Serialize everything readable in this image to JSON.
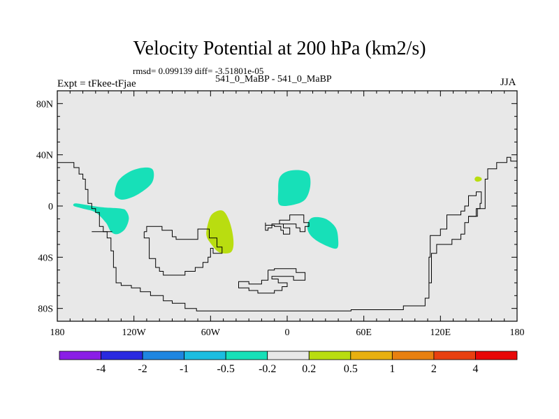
{
  "header": {
    "title": "Velocity Potential at 200 hPa (km2/s)",
    "stats": "rmsd= 0.099139 diff= -3.51801e-05",
    "left_label": "Expt = tFkee-tFjae",
    "center_label": "541_0_MaBP - 541_0_MaBP",
    "right_label": "JJA"
  },
  "chart_data": {
    "type": "heatmap",
    "title": "Velocity Potential at 200 hPa (km2/s)",
    "subtitle": "rmsd= 0.099139 diff= -3.51801e-05",
    "xlabel": "",
    "ylabel": "",
    "xlim": [
      -180,
      180
    ],
    "ylim": [
      -90,
      90
    ],
    "x_ticks": [
      {
        "value": -180,
        "label": "180"
      },
      {
        "value": -120,
        "label": "120W"
      },
      {
        "value": -60,
        "label": "60W"
      },
      {
        "value": 0,
        "label": "0"
      },
      {
        "value": 60,
        "label": "60E"
      },
      {
        "value": 120,
        "label": "120E"
      },
      {
        "value": 180,
        "label": "180"
      }
    ],
    "y_ticks": [
      {
        "value": 80,
        "label": "80N"
      },
      {
        "value": 40,
        "label": "40N"
      },
      {
        "value": 0,
        "label": "0"
      },
      {
        "value": -40,
        "label": "40S"
      },
      {
        "value": -80,
        "label": "80S"
      }
    ],
    "background_color": "#e8e8e8",
    "colorbar": {
      "levels": [
        "-4",
        "-2",
        "-1",
        "-0.5",
        "-0.2",
        "0.2",
        "0.5",
        "1",
        "2",
        "4"
      ],
      "colors": [
        "#8a1ee6",
        "#2a2ae0",
        "#1f86e0",
        "#1cbde0",
        "#17e0b8",
        "#e8e8e8",
        "#b9dd10",
        "#e8b010",
        "#e88010",
        "#e84010",
        "#e80808"
      ]
    },
    "regions": [
      {
        "lon": -123,
        "lat": 18,
        "value_range": "-0.5 to -0.2",
        "color": "#17e0b8",
        "outline": [
          [
            -135,
            11
          ],
          [
            -132,
            20
          ],
          [
            -123,
            27
          ],
          [
            -112,
            30
          ],
          [
            -105,
            28
          ],
          [
            -106,
            18
          ],
          [
            -117,
            9
          ],
          [
            -128,
            5
          ],
          [
            -134,
            7
          ]
        ]
      },
      {
        "lon": -143,
        "lat": -12,
        "value_range": "-0.5 to -0.2",
        "color": "#17e0b8",
        "outline": [
          [
            -167,
            0
          ],
          [
            -160,
            -2
          ],
          [
            -150,
            -5
          ],
          [
            -142,
            -13
          ],
          [
            -138,
            -20
          ],
          [
            -133,
            -22
          ],
          [
            -127,
            -18
          ],
          [
            -124,
            -10
          ],
          [
            -126,
            -4
          ],
          [
            -130,
            -2
          ],
          [
            -145,
            -1
          ],
          [
            -158,
            1
          ],
          [
            -166,
            2
          ]
        ]
      },
      {
        "lon": 5,
        "lat": 16,
        "value_range": "-0.5 to -0.2",
        "color": "#17e0b8",
        "outline": [
          [
            -7,
            12
          ],
          [
            -6,
            22
          ],
          [
            0,
            27
          ],
          [
            10,
            28
          ],
          [
            17,
            25
          ],
          [
            18,
            15
          ],
          [
            14,
            5
          ],
          [
            5,
            1
          ],
          [
            -6,
            1
          ]
        ]
      },
      {
        "lon": 28,
        "lat": -20,
        "value_range": "-0.5 to -0.2",
        "color": "#17e0b8",
        "outline": [
          [
            16,
            -14
          ],
          [
            20,
            -9
          ],
          [
            30,
            -10
          ],
          [
            38,
            -17
          ],
          [
            40,
            -27
          ],
          [
            39,
            -33
          ],
          [
            33,
            -32
          ],
          [
            23,
            -27
          ],
          [
            17,
            -21
          ]
        ]
      },
      {
        "lon": -52,
        "lat": -22,
        "value_range": "0.2 to 0.5",
        "color": "#b9dd10",
        "outline": [
          [
            -63,
            -18
          ],
          [
            -60,
            -8
          ],
          [
            -55,
            -4
          ],
          [
            -50,
            -4
          ],
          [
            -46,
            -10
          ],
          [
            -43,
            -20
          ],
          [
            -42,
            -30
          ],
          [
            -44,
            -36
          ],
          [
            -50,
            -37
          ],
          [
            -55,
            -35
          ],
          [
            -60,
            -29
          ],
          [
            -63,
            -24
          ]
        ]
      },
      {
        "lon": 150,
        "lat": 21,
        "value_range": "0.2 to 0.5",
        "color": "#b9dd10",
        "outline": [
          [
            147,
            22
          ],
          [
            149,
            23
          ],
          [
            152,
            22
          ],
          [
            152,
            20
          ],
          [
            149,
            19
          ],
          [
            147,
            20
          ]
        ]
      }
    ],
    "land_outlines": [
      [
        [
          -180,
          34
        ],
        [
          -167,
          34
        ],
        [
          -167,
          30
        ],
        [
          -163,
          30
        ],
        [
          -163,
          25
        ],
        [
          -160,
          25
        ],
        [
          -160,
          21
        ],
        [
          -158,
          21
        ],
        [
          -158,
          13
        ],
        [
          -156,
          13
        ],
        [
          -156,
          2
        ],
        [
          -153,
          2
        ],
        [
          -153,
          -2
        ],
        [
          -150,
          -2
        ],
        [
          -150,
          -5
        ],
        [
          -147,
          -5
        ],
        [
          -147,
          -16
        ],
        [
          -144,
          -16
        ],
        [
          -144,
          -20
        ],
        [
          -141,
          -20
        ],
        [
          -141,
          -25
        ],
        [
          -138,
          -25
        ],
        [
          -138,
          -35
        ],
        [
          -136,
          -35
        ],
        [
          -136,
          -48
        ],
        [
          -134,
          -48
        ],
        [
          -134,
          -60
        ],
        [
          -130,
          -60
        ],
        [
          -130,
          -62
        ],
        [
          -122,
          -62
        ],
        [
          -122,
          -64
        ],
        [
          -115,
          -64
        ],
        [
          -115,
          -67
        ],
        [
          -107,
          -67
        ],
        [
          -107,
          -70
        ],
        [
          -97,
          -70
        ],
        [
          -97,
          -74
        ],
        [
          -90,
          -74
        ],
        [
          -90,
          -76
        ],
        [
          -80,
          -76
        ],
        [
          -80,
          -80
        ],
        [
          -71,
          -80
        ],
        [
          -71,
          -82
        ],
        [
          50,
          -82
        ],
        [
          50,
          -81
        ],
        [
          91,
          -81
        ],
        [
          91,
          -78
        ],
        [
          108,
          -78
        ],
        [
          108,
          -72
        ],
        [
          111,
          -72
        ],
        [
          111,
          -60
        ],
        [
          113,
          -60
        ],
        [
          113,
          -37
        ],
        [
          117,
          -37
        ],
        [
          117,
          -30
        ],
        [
          129,
          -30
        ],
        [
          129,
          -26
        ],
        [
          136,
          -26
        ],
        [
          136,
          -22
        ],
        [
          139,
          -22
        ],
        [
          139,
          -13
        ],
        [
          142,
          -13
        ],
        [
          142,
          -8
        ],
        [
          148,
          -8
        ],
        [
          148,
          -2
        ],
        [
          151,
          -2
        ],
        [
          151,
          2
        ],
        [
          152,
          2
        ],
        [
          152,
          11
        ],
        [
          148,
          11
        ],
        [
          148,
          8
        ],
        [
          142,
          8
        ],
        [
          142,
          0
        ],
        [
          139,
          0
        ],
        [
          139,
          -4
        ],
        [
          136,
          -4
        ],
        [
          136,
          -7
        ],
        [
          125,
          -7
        ],
        [
          125,
          -18
        ],
        [
          120,
          -18
        ],
        [
          120,
          -23
        ],
        [
          112,
          -23
        ],
        [
          112,
          -40
        ],
        [
          111,
          -40
        ],
        [
          111,
          -62
        ]
      ],
      [
        [
          142,
          -8
        ],
        [
          149,
          -8
        ],
        [
          149,
          -2
        ],
        [
          155,
          -2
        ],
        [
          155,
          2
        ],
        [
          155,
          21
        ],
        [
          157,
          21
        ],
        [
          157,
          29
        ],
        [
          164,
          29
        ],
        [
          164,
          34
        ],
        [
          172,
          34
        ],
        [
          172,
          38
        ],
        [
          175,
          38
        ],
        [
          175,
          35
        ],
        [
          180,
          35
        ]
      ],
      [
        [
          -153,
          -20
        ],
        [
          -137,
          -20
        ]
      ],
      [
        [
          -112,
          -20
        ],
        [
          -110,
          -20
        ],
        [
          -110,
          -16
        ],
        [
          -98,
          -16
        ],
        [
          -98,
          -19
        ],
        [
          -90,
          -19
        ],
        [
          -90,
          -24
        ],
        [
          -87,
          -24
        ],
        [
          -87,
          -26
        ],
        [
          -70,
          -26
        ],
        [
          -70,
          -18
        ],
        [
          -61,
          -18
        ],
        [
          -61,
          -25
        ],
        [
          -55,
          -25
        ],
        [
          -55,
          -32
        ],
        [
          -51,
          -32
        ],
        [
          -51,
          -37
        ],
        [
          -58,
          -37
        ],
        [
          -58,
          -33
        ],
        [
          -60,
          -33
        ],
        [
          -60,
          -40
        ],
        [
          -62,
          -40
        ],
        [
          -62,
          -44
        ],
        [
          -66,
          -44
        ],
        [
          -66,
          -48
        ],
        [
          -72,
          -48
        ],
        [
          -72,
          -51
        ],
        [
          -80,
          -51
        ],
        [
          -80,
          -54
        ],
        [
          -97,
          -54
        ],
        [
          -97,
          -51
        ],
        [
          -100,
          -51
        ],
        [
          -100,
          -48
        ],
        [
          -103,
          -48
        ],
        [
          -103,
          -41
        ],
        [
          -108,
          -41
        ],
        [
          -108,
          -25
        ],
        [
          -112,
          -25
        ],
        [
          -112,
          -20
        ]
      ],
      [
        [
          -17,
          -13
        ],
        [
          -17,
          -15
        ],
        [
          -10,
          -15
        ],
        [
          -10,
          -16
        ],
        [
          -5,
          -16
        ],
        [
          -5,
          -19
        ],
        [
          -3,
          -19
        ],
        [
          -3,
          -22
        ],
        [
          2,
          -22
        ],
        [
          2,
          -17
        ],
        [
          -3,
          -17
        ],
        [
          -3,
          -14
        ],
        [
          -6,
          -14
        ],
        [
          -6,
          -11
        ],
        [
          2,
          -11
        ],
        [
          2,
          -7
        ],
        [
          13,
          -7
        ],
        [
          13,
          -13
        ],
        [
          17,
          -13
        ],
        [
          17,
          -16
        ],
        [
          14,
          -16
        ],
        [
          14,
          -20
        ],
        [
          10,
          -20
        ],
        [
          10,
          -17
        ],
        [
          7,
          -17
        ],
        [
          7,
          -14
        ],
        [
          2,
          -14
        ],
        [
          -3,
          -14
        ],
        [
          -12,
          -14
        ],
        [
          -12,
          -17
        ],
        [
          -15,
          -17
        ],
        [
          -15,
          -19
        ],
        [
          -17,
          -19
        ],
        [
          -17,
          -13
        ]
      ],
      [
        [
          -15,
          -50
        ],
        [
          -10,
          -50
        ],
        [
          -10,
          -49
        ],
        [
          7,
          -49
        ],
        [
          7,
          -52
        ],
        [
          14,
          -52
        ],
        [
          14,
          -58
        ],
        [
          5,
          -58
        ],
        [
          5,
          -55
        ],
        [
          -12,
          -55
        ],
        [
          -12,
          -57
        ],
        [
          -7,
          -57
        ],
        [
          -7,
          -60
        ],
        [
          0,
          -60
        ],
        [
          0,
          -63
        ],
        [
          -4,
          -63
        ],
        [
          -4,
          -66
        ],
        [
          -10,
          -66
        ],
        [
          -10,
          -68
        ],
        [
          -23,
          -68
        ],
        [
          -23,
          -66
        ],
        [
          -30,
          -66
        ],
        [
          -30,
          -64
        ],
        [
          -38,
          -64
        ],
        [
          -38,
          -59
        ],
        [
          -30,
          -59
        ],
        [
          -30,
          -61
        ],
        [
          -20,
          -61
        ],
        [
          -20,
          -58
        ],
        [
          -15,
          -58
        ],
        [
          -15,
          -50
        ]
      ]
    ]
  }
}
